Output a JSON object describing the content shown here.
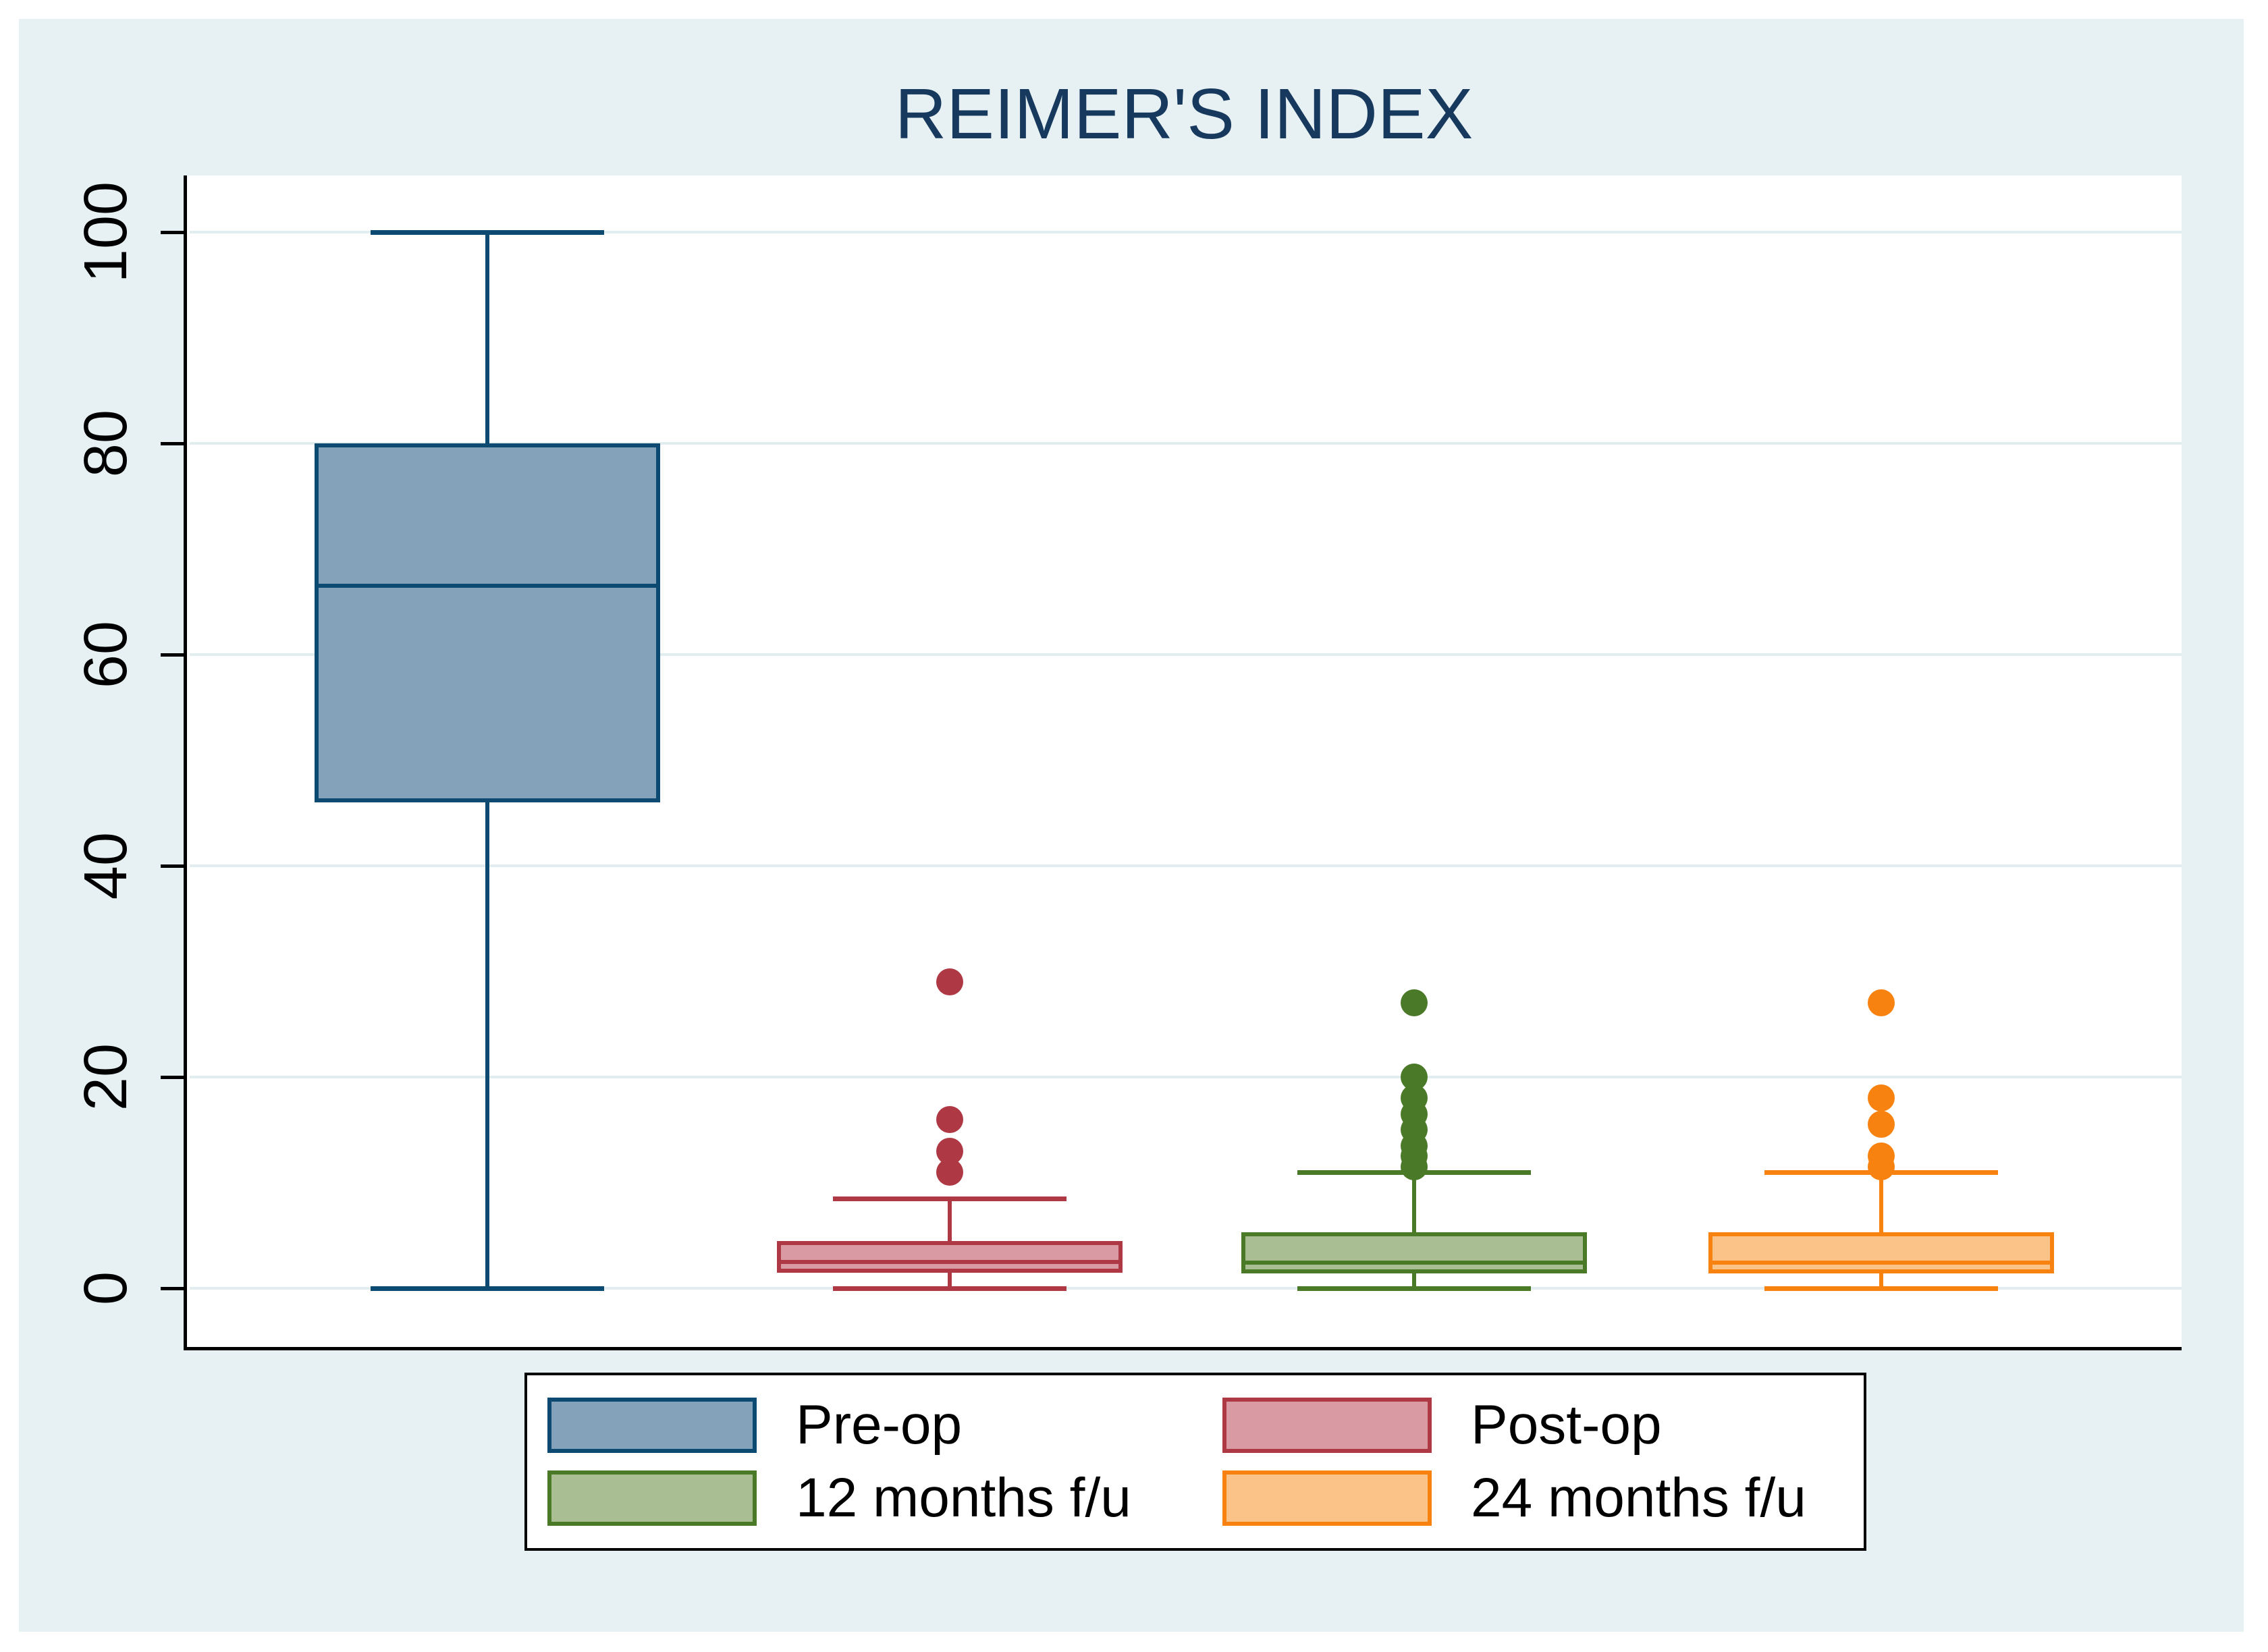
{
  "figure": {
    "title": "REIMER'S INDEX"
  },
  "style": {
    "outer_background": "#e7f1f3",
    "plot_background": "#ffffff",
    "grid_color": "#e2edf0",
    "axis_color": "#000000",
    "title_color": "#17395e",
    "text_color": "#000000",
    "legend_background": "#ffffff",
    "legend_border": "#000000"
  },
  "chart_data": {
    "type": "box",
    "title": "REIMER'S INDEX",
    "xlabel": "",
    "ylabel": "",
    "y_axis": {
      "ticks": [
        0,
        20,
        40,
        60,
        80,
        100
      ],
      "min": -5.7,
      "max": 105.4,
      "grid": true
    },
    "legend": {
      "position": "bottom-center",
      "entries": [
        "Pre-op",
        "Post-op",
        "12 months f/u",
        "24 months f/u"
      ]
    },
    "series": [
      {
        "name": "Pre-op",
        "stroke": "#0c4a72",
        "fill": "#84a3ba",
        "whisker_low": 0,
        "q1": 46,
        "median": 66.5,
        "q3": 80,
        "whisker_high": 100,
        "outliers": []
      },
      {
        "name": "Post-op",
        "stroke": "#ae3945",
        "fill": "#da9aa3",
        "whisker_low": 0,
        "q1": 1.5,
        "median": 2.5,
        "q3": 4.5,
        "whisker_high": 8.5,
        "outliers": [
          11,
          13,
          16,
          29
        ]
      },
      {
        "name": "12 months f/u",
        "stroke": "#4a7928",
        "fill": "#a9bf93",
        "whisker_low": 0,
        "q1": 1.4,
        "median": 2.4,
        "q3": 5.3,
        "whisker_high": 11,
        "outliers": [
          11.5,
          12.5,
          13.5,
          15,
          16.5,
          18,
          20,
          27
        ]
      },
      {
        "name": "24 months f/u",
        "stroke": "#f8820f",
        "fill": "#fcc388",
        "whisker_low": 0,
        "q1": 1.4,
        "median": 2.4,
        "q3": 5.3,
        "whisker_high": 11,
        "outliers": [
          11.5,
          12.5,
          15.5,
          18,
          27
        ]
      }
    ]
  }
}
